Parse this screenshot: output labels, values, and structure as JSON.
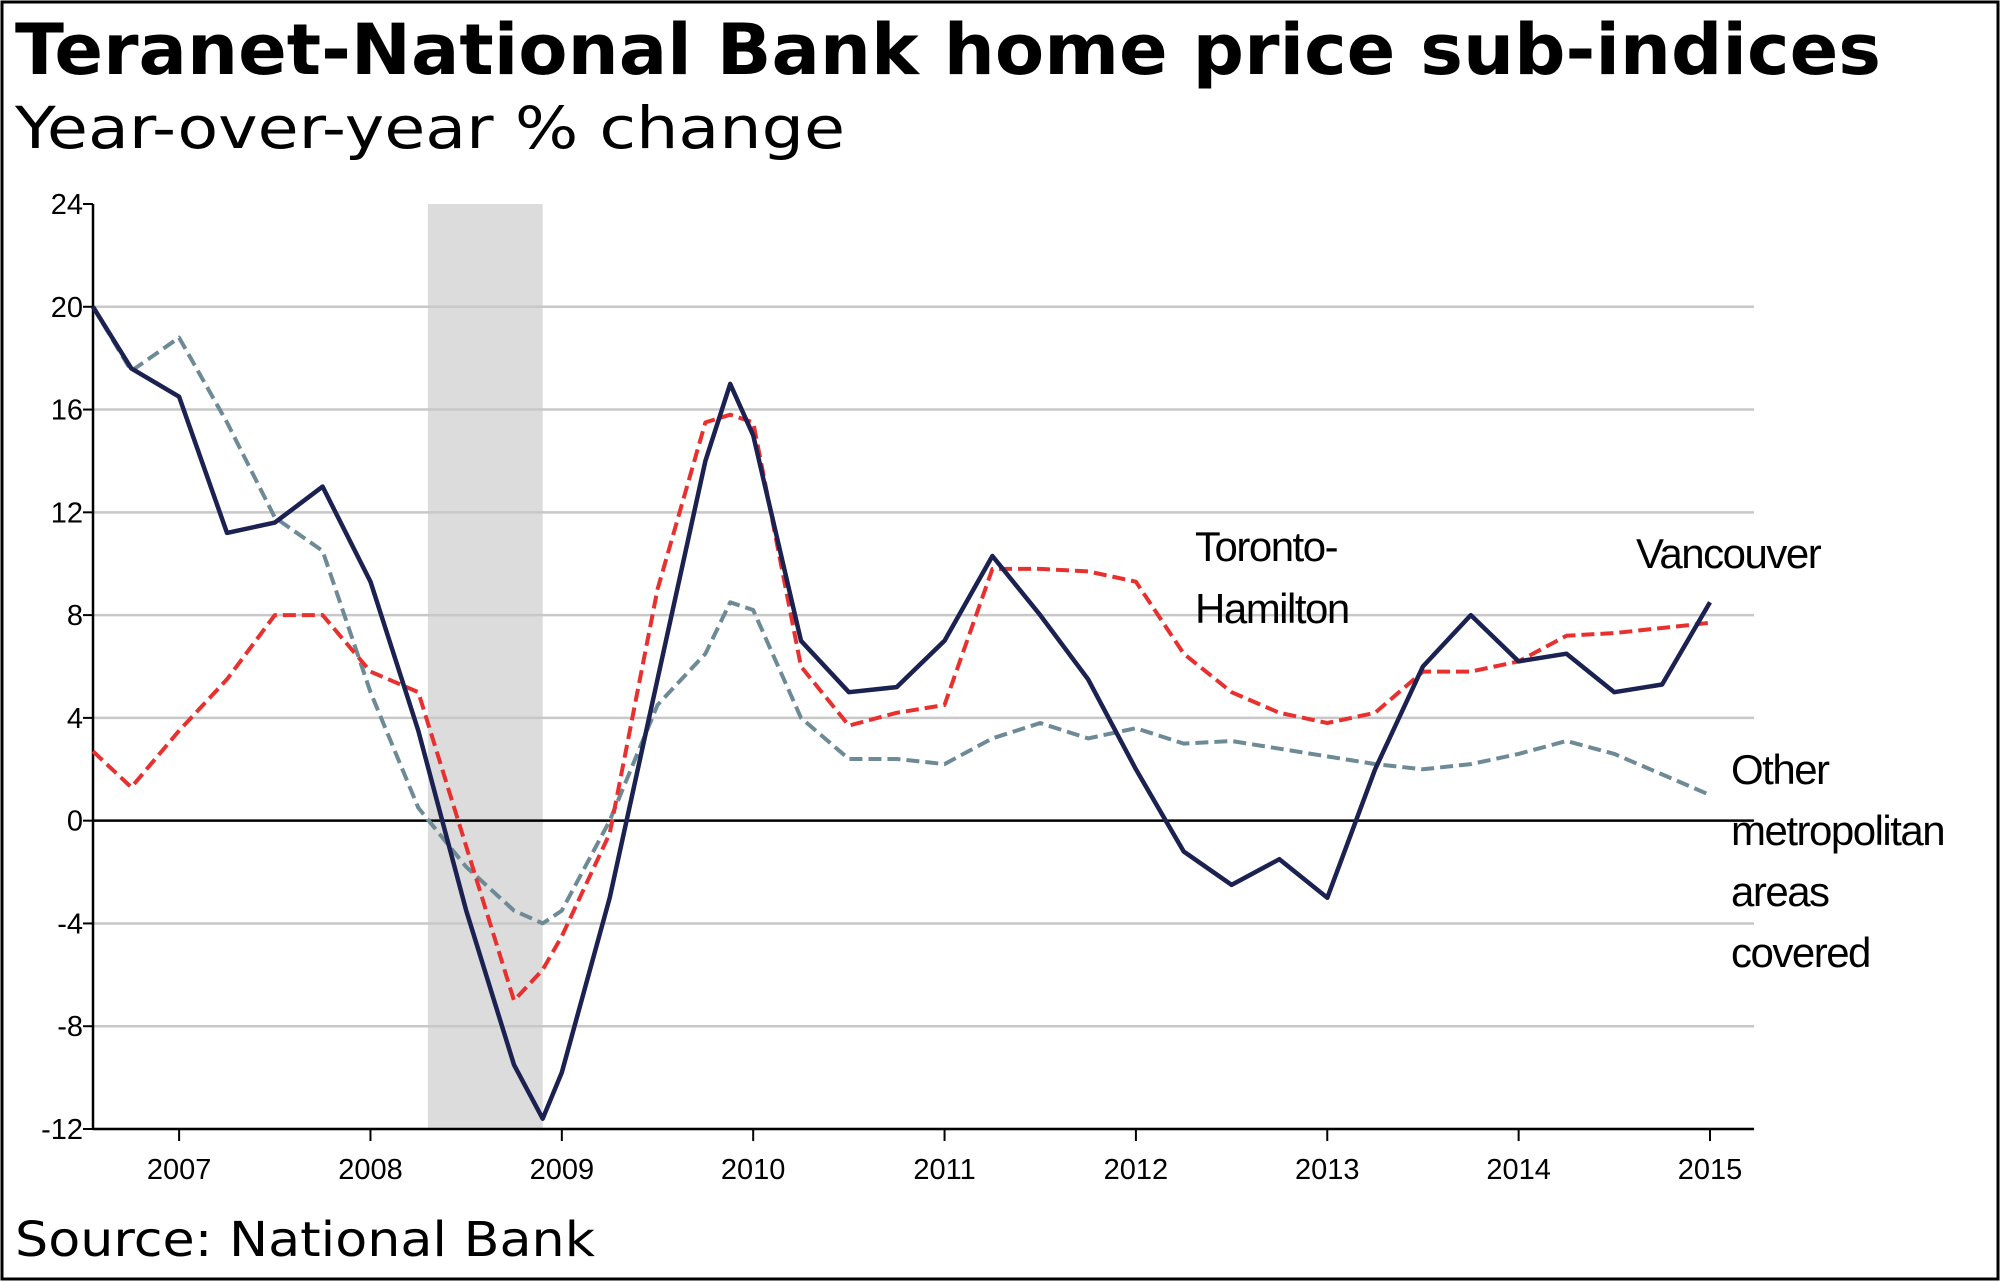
{
  "chart_data": {
    "type": "line",
    "title": "Teranet-National Bank home price sub-indices",
    "subtitle": "Year-over-year % change",
    "source": "Source: National Bank",
    "x": [
      2006.55,
      2006.75,
      2007.0,
      2007.25,
      2007.5,
      2007.75,
      2008.0,
      2008.25,
      2008.5,
      2008.75,
      2008.9,
      2009.0,
      2009.25,
      2009.5,
      2009.75,
      2009.88,
      2010.0,
      2010.25,
      2010.5,
      2010.75,
      2011.0,
      2011.25,
      2011.5,
      2011.75,
      2012.0,
      2012.25,
      2012.5,
      2012.75,
      2013.0,
      2013.25,
      2013.5,
      2013.75,
      2014.0,
      2014.25,
      2014.5,
      2014.75,
      2015.0
    ],
    "series": [
      {
        "name": [
          "Vancouver"
        ],
        "color": "#1b2150",
        "dash": false,
        "values": [
          20,
          17.6,
          16.5,
          11.2,
          11.6,
          13.0,
          9.3,
          3.5,
          -3.5,
          -9.5,
          -11.6,
          -9.8,
          -3,
          5.5,
          14,
          17,
          15,
          7,
          5,
          5.2,
          7,
          10.3,
          8,
          5.5,
          2,
          -1.2,
          -2.5,
          -1.5,
          -3,
          2,
          6,
          8,
          6.2,
          6.5,
          5,
          5.3,
          8.5
        ]
      },
      {
        "name": [
          "Toronto-",
          "Hamilton"
        ],
        "color": "#e8302e",
        "dash": true,
        "values": [
          2.7,
          1.3,
          3.5,
          5.5,
          8,
          8,
          5.8,
          5,
          -1,
          -7,
          -5.8,
          -4.5,
          -0.5,
          9,
          15.5,
          15.8,
          15.5,
          6,
          3.7,
          4.2,
          4.5,
          9.8,
          9.8,
          9.7,
          9.3,
          6.5,
          5.0,
          4.2,
          3.8,
          4.2,
          5.8,
          5.8,
          6.2,
          7.2,
          7.3,
          7.5,
          7.7
        ]
      },
      {
        "name": [
          "Other",
          "metropolitan",
          "areas",
          "covered"
        ],
        "color": "#6d8a96",
        "dash": true,
        "values": [
          20,
          17.5,
          18.8,
          15.5,
          11.8,
          10.5,
          5,
          0.5,
          -1.8,
          -3.5,
          -4,
          -3.5,
          0,
          4.5,
          6.5,
          8.5,
          8.2,
          4,
          2.4,
          2.4,
          2.2,
          3.2,
          3.8,
          3.2,
          3.6,
          3.0,
          3.1,
          2.8,
          2.5,
          2.2,
          2.0,
          2.2,
          2.6,
          3.1,
          2.6,
          1.8,
          1.0
        ]
      }
    ],
    "shaded_region": [
      2008.3,
      2008.9
    ],
    "xlim": [
      2006.55,
      2015.23
    ],
    "xticks": [
      2007,
      2008,
      2009,
      2010,
      2011,
      2012,
      2013,
      2014,
      2015
    ],
    "ylim": [
      -12,
      24
    ],
    "yticks": [
      -12,
      -8,
      -4,
      0,
      4,
      8,
      12,
      16,
      20,
      24
    ],
    "grid": true
  }
}
